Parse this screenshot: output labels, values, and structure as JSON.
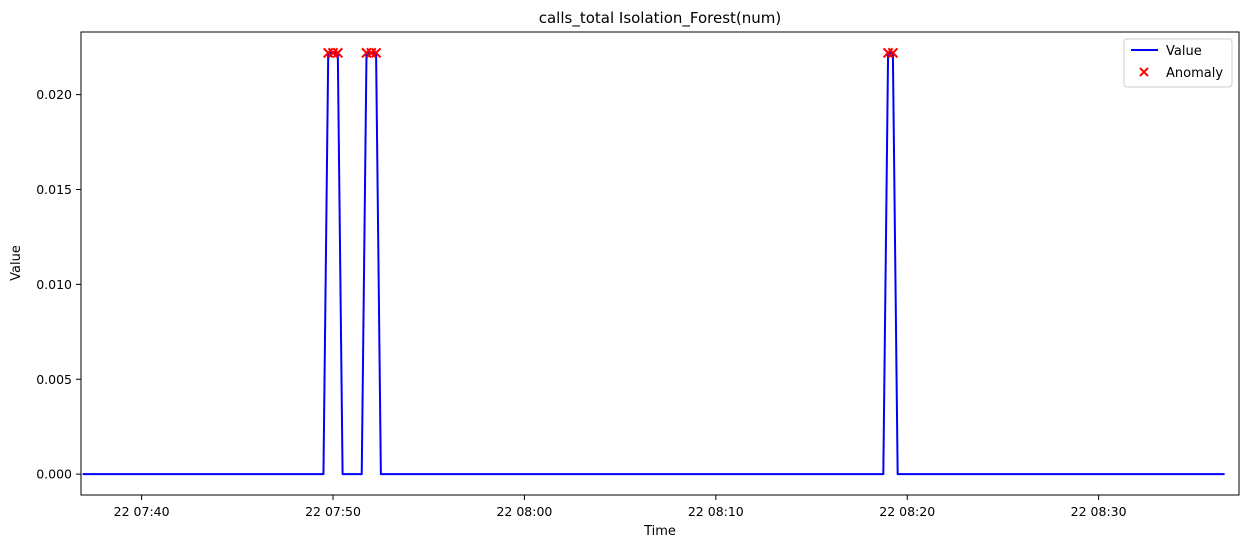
{
  "chart_data": {
    "type": "line",
    "title": "calls_total Isolation_Forest(num)",
    "xlabel": "Time",
    "ylabel": "Value",
    "xlim": [
      "22 07:36:50",
      "22 08:37:20"
    ],
    "ylim": [
      -0.0011,
      0.0233
    ],
    "x_ticks": [
      "22 07:40",
      "22 07:50",
      "22 08:00",
      "22 08:10",
      "22 08:20",
      "22 08:30"
    ],
    "y_ticks": [
      "0.000",
      "0.005",
      "0.010",
      "0.015",
      "0.020"
    ],
    "grid": false,
    "legend": {
      "placement": "top-right",
      "entries": [
        "Value",
        "Anomaly"
      ]
    },
    "series": [
      {
        "name": "Value",
        "kind": "line",
        "color": "#0000ff",
        "points": [
          [
            "22 07:36:55",
            0.0
          ],
          [
            "22 07:49:30",
            0.0
          ],
          [
            "22 07:49:45",
            0.0222
          ],
          [
            "22 07:50:00",
            0.0222
          ],
          [
            "22 07:50:15",
            0.0222
          ],
          [
            "22 07:50:30",
            0.0
          ],
          [
            "22 07:51:30",
            0.0
          ],
          [
            "22 07:51:45",
            0.0222
          ],
          [
            "22 07:52:00",
            0.0222
          ],
          [
            "22 07:52:15",
            0.0222
          ],
          [
            "22 07:52:30",
            0.0
          ],
          [
            "22 08:18:45",
            0.0
          ],
          [
            "22 08:19:00",
            0.0222
          ],
          [
            "22 08:19:15",
            0.0222
          ],
          [
            "22 08:19:30",
            0.0
          ],
          [
            "22 08:36:35",
            0.0
          ]
        ]
      },
      {
        "name": "Anomaly",
        "kind": "scatter",
        "marker": "x",
        "color": "#ff0000",
        "points": [
          [
            "22 07:49:45",
            0.0222
          ],
          [
            "22 07:50:00",
            0.0222
          ],
          [
            "22 07:50:15",
            0.0222
          ],
          [
            "22 07:51:45",
            0.0222
          ],
          [
            "22 07:52:00",
            0.0222
          ],
          [
            "22 07:52:15",
            0.0222
          ],
          [
            "22 08:19:00",
            0.0222
          ],
          [
            "22 08:19:15",
            0.0222
          ]
        ]
      }
    ]
  }
}
